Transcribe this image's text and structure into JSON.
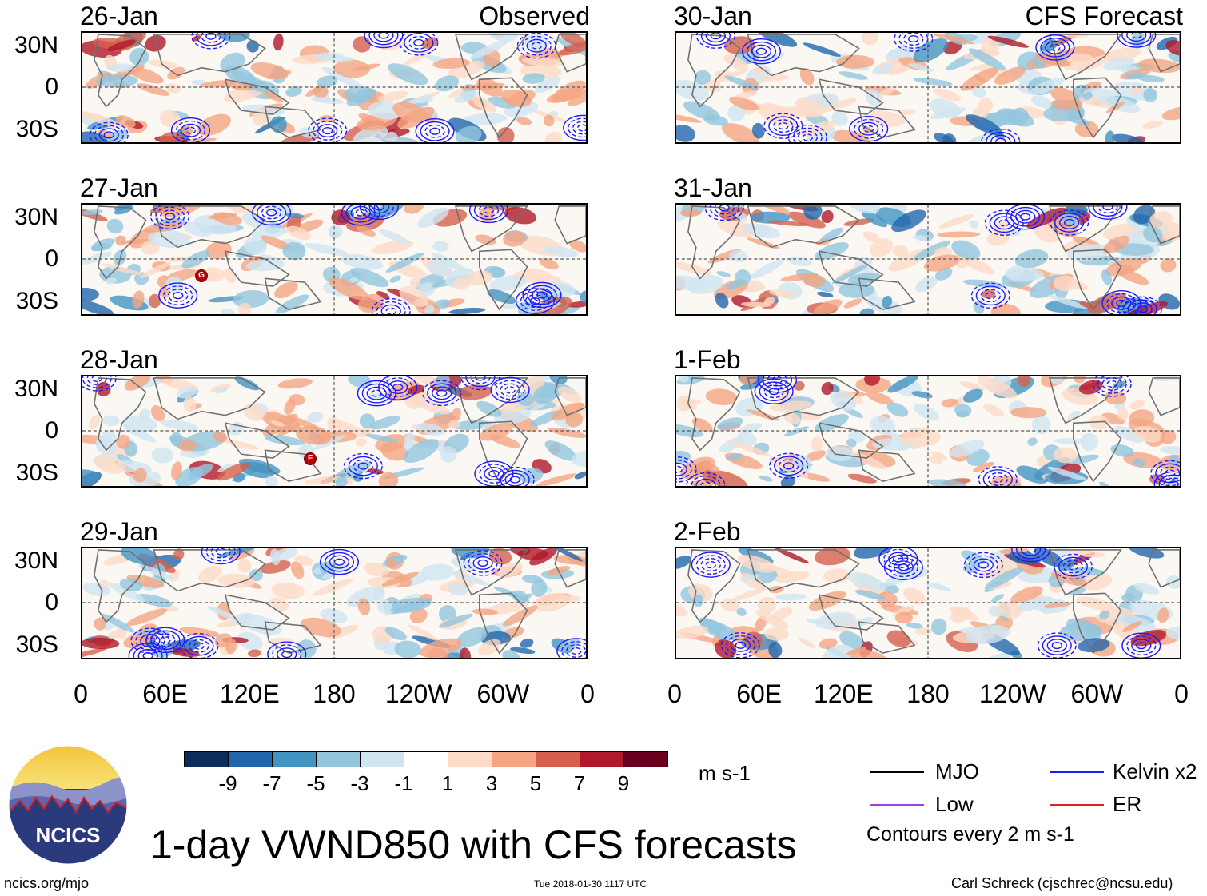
{
  "observed_label": "Observed",
  "forecast_label": "CFS Forecast",
  "observed_dates": [
    "26-Jan",
    "27-Jan",
    "28-Jan",
    "29-Jan"
  ],
  "forecast_dates": [
    "30-Jan",
    "31-Jan",
    "1-Feb",
    "2-Feb"
  ],
  "lat_labels": [
    "30N",
    "0",
    "30S"
  ],
  "lon_labels": [
    "0",
    "60E",
    "120E",
    "180",
    "120W",
    "60W",
    "0"
  ],
  "storm_markers": [
    {
      "panel": "27-Jan",
      "letter": "G"
    },
    {
      "panel": "28-Jan",
      "letter": "F"
    }
  ],
  "colorbar": {
    "ticks": [
      "-9",
      "-7",
      "-5",
      "-3",
      "-1",
      "1",
      "3",
      "5",
      "7",
      "9"
    ],
    "colors": [
      "#0b2e5e",
      "#2166ac",
      "#4393c3",
      "#92c5de",
      "#d1e5f0",
      "#ffffff",
      "#fddbc7",
      "#f4a582",
      "#d6604d",
      "#b2182b",
      "#67001f"
    ],
    "units": "m s-1"
  },
  "legend": {
    "mjo": "MJO",
    "kelvin": "Kelvin x2",
    "low": "Low",
    "er": "ER",
    "contours_note": "Contours every 2 m s-1",
    "colors": {
      "mjo": "#000000",
      "kelvin": "#1a1aff",
      "low": "#a040e0",
      "er": "#e02020"
    }
  },
  "title": "1-day VWND850 with CFS forecasts",
  "logo_text": "NCICS",
  "website": "ncics.org/mjo",
  "timestamp": "Tue 2018-01-30 1117 UTC",
  "author": "Carl Schreck (cjschrec@ncsu.edu)"
}
